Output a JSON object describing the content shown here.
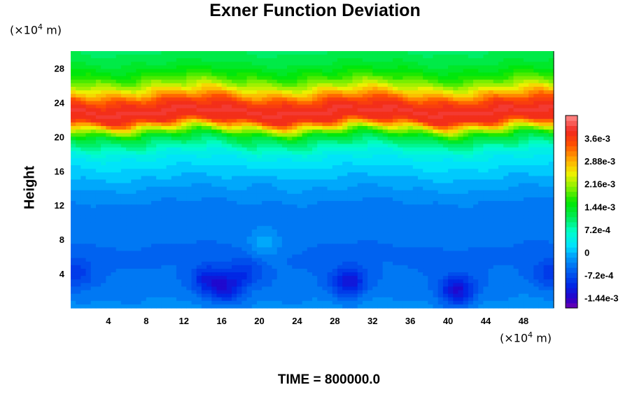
{
  "title": "Exner Function Deviation",
  "y_unit": {
    "prefix": "(×10",
    "exp": "4",
    "suffix": " m)"
  },
  "x_unit": {
    "prefix": "(×10",
    "exp": "4",
    "suffix": " m)"
  },
  "footer": "TIME = 800000.0",
  "chart_data": {
    "type": "heatmap",
    "title": "Exner Function Deviation",
    "ylabel": "Height",
    "xlabel": "",
    "x_unit_label": "(×10^4 m)",
    "y_unit_label": "(×10^4 m)",
    "xlim": [
      0,
      51.2
    ],
    "ylim": [
      0,
      30
    ],
    "x_ticks": [
      4,
      8,
      12,
      16,
      20,
      24,
      28,
      32,
      36,
      40,
      44,
      48
    ],
    "y_ticks": [
      4,
      8,
      12,
      16,
      20,
      24,
      28
    ],
    "colorbar": {
      "min": -0.00176,
      "max": 0.00432,
      "levels": 38,
      "tick_values": [
        0.0036,
        0.00288,
        0.00216,
        0.00144,
        0.00072,
        0,
        -0.00072,
        -0.00144
      ],
      "tick_labels": [
        "3.6e-3",
        "2.88e-3",
        "2.16e-3",
        "1.44e-3",
        "7.2e-4",
        "0",
        "-7.2e-4",
        "-1.44e-3"
      ]
    },
    "profile": [
      {
        "height": 0,
        "value": -0.00025
      },
      {
        "height": 3,
        "value": -0.00045
      },
      {
        "height": 6,
        "value": -0.0005
      },
      {
        "height": 9,
        "value": -0.00045
      },
      {
        "height": 12,
        "value": -0.00036
      },
      {
        "height": 14,
        "value": -0.00015
      },
      {
        "height": 16,
        "value": 0.0001
      },
      {
        "height": 18,
        "value": 0.0004
      },
      {
        "height": 20,
        "value": 0.0013
      },
      {
        "height": 21,
        "value": 0.0024
      },
      {
        "height": 22,
        "value": 0.0037
      },
      {
        "height": 23,
        "value": 0.0039
      },
      {
        "height": 24,
        "value": 0.0036
      },
      {
        "height": 25,
        "value": 0.0029
      },
      {
        "height": 26,
        "value": 0.0022
      },
      {
        "height": 27,
        "value": 0.0017
      },
      {
        "height": 28,
        "value": 0.0014
      },
      {
        "height": 29,
        "value": 0.0012
      },
      {
        "height": 30,
        "value": 0.0011
      }
    ],
    "anomalies": [
      {
        "x": 29.5,
        "y": 3,
        "value": -0.0013
      },
      {
        "x": 41,
        "y": 2,
        "value": -0.0013
      },
      {
        "x": 14.5,
        "y": 3.2,
        "value": -0.0011
      },
      {
        "x": 16.5,
        "y": 2.2,
        "value": -0.0011
      },
      {
        "x": 18.5,
        "y": 4.2,
        "value": -0.0009
      },
      {
        "x": 0.5,
        "y": 4,
        "value": -0.0009
      },
      {
        "x": 50.8,
        "y": 4,
        "value": -0.0009
      },
      {
        "x": 21,
        "y": 14.5,
        "value": -0.0002
      },
      {
        "x": 20.5,
        "y": 7.5,
        "value": -0.0001
      }
    ]
  }
}
